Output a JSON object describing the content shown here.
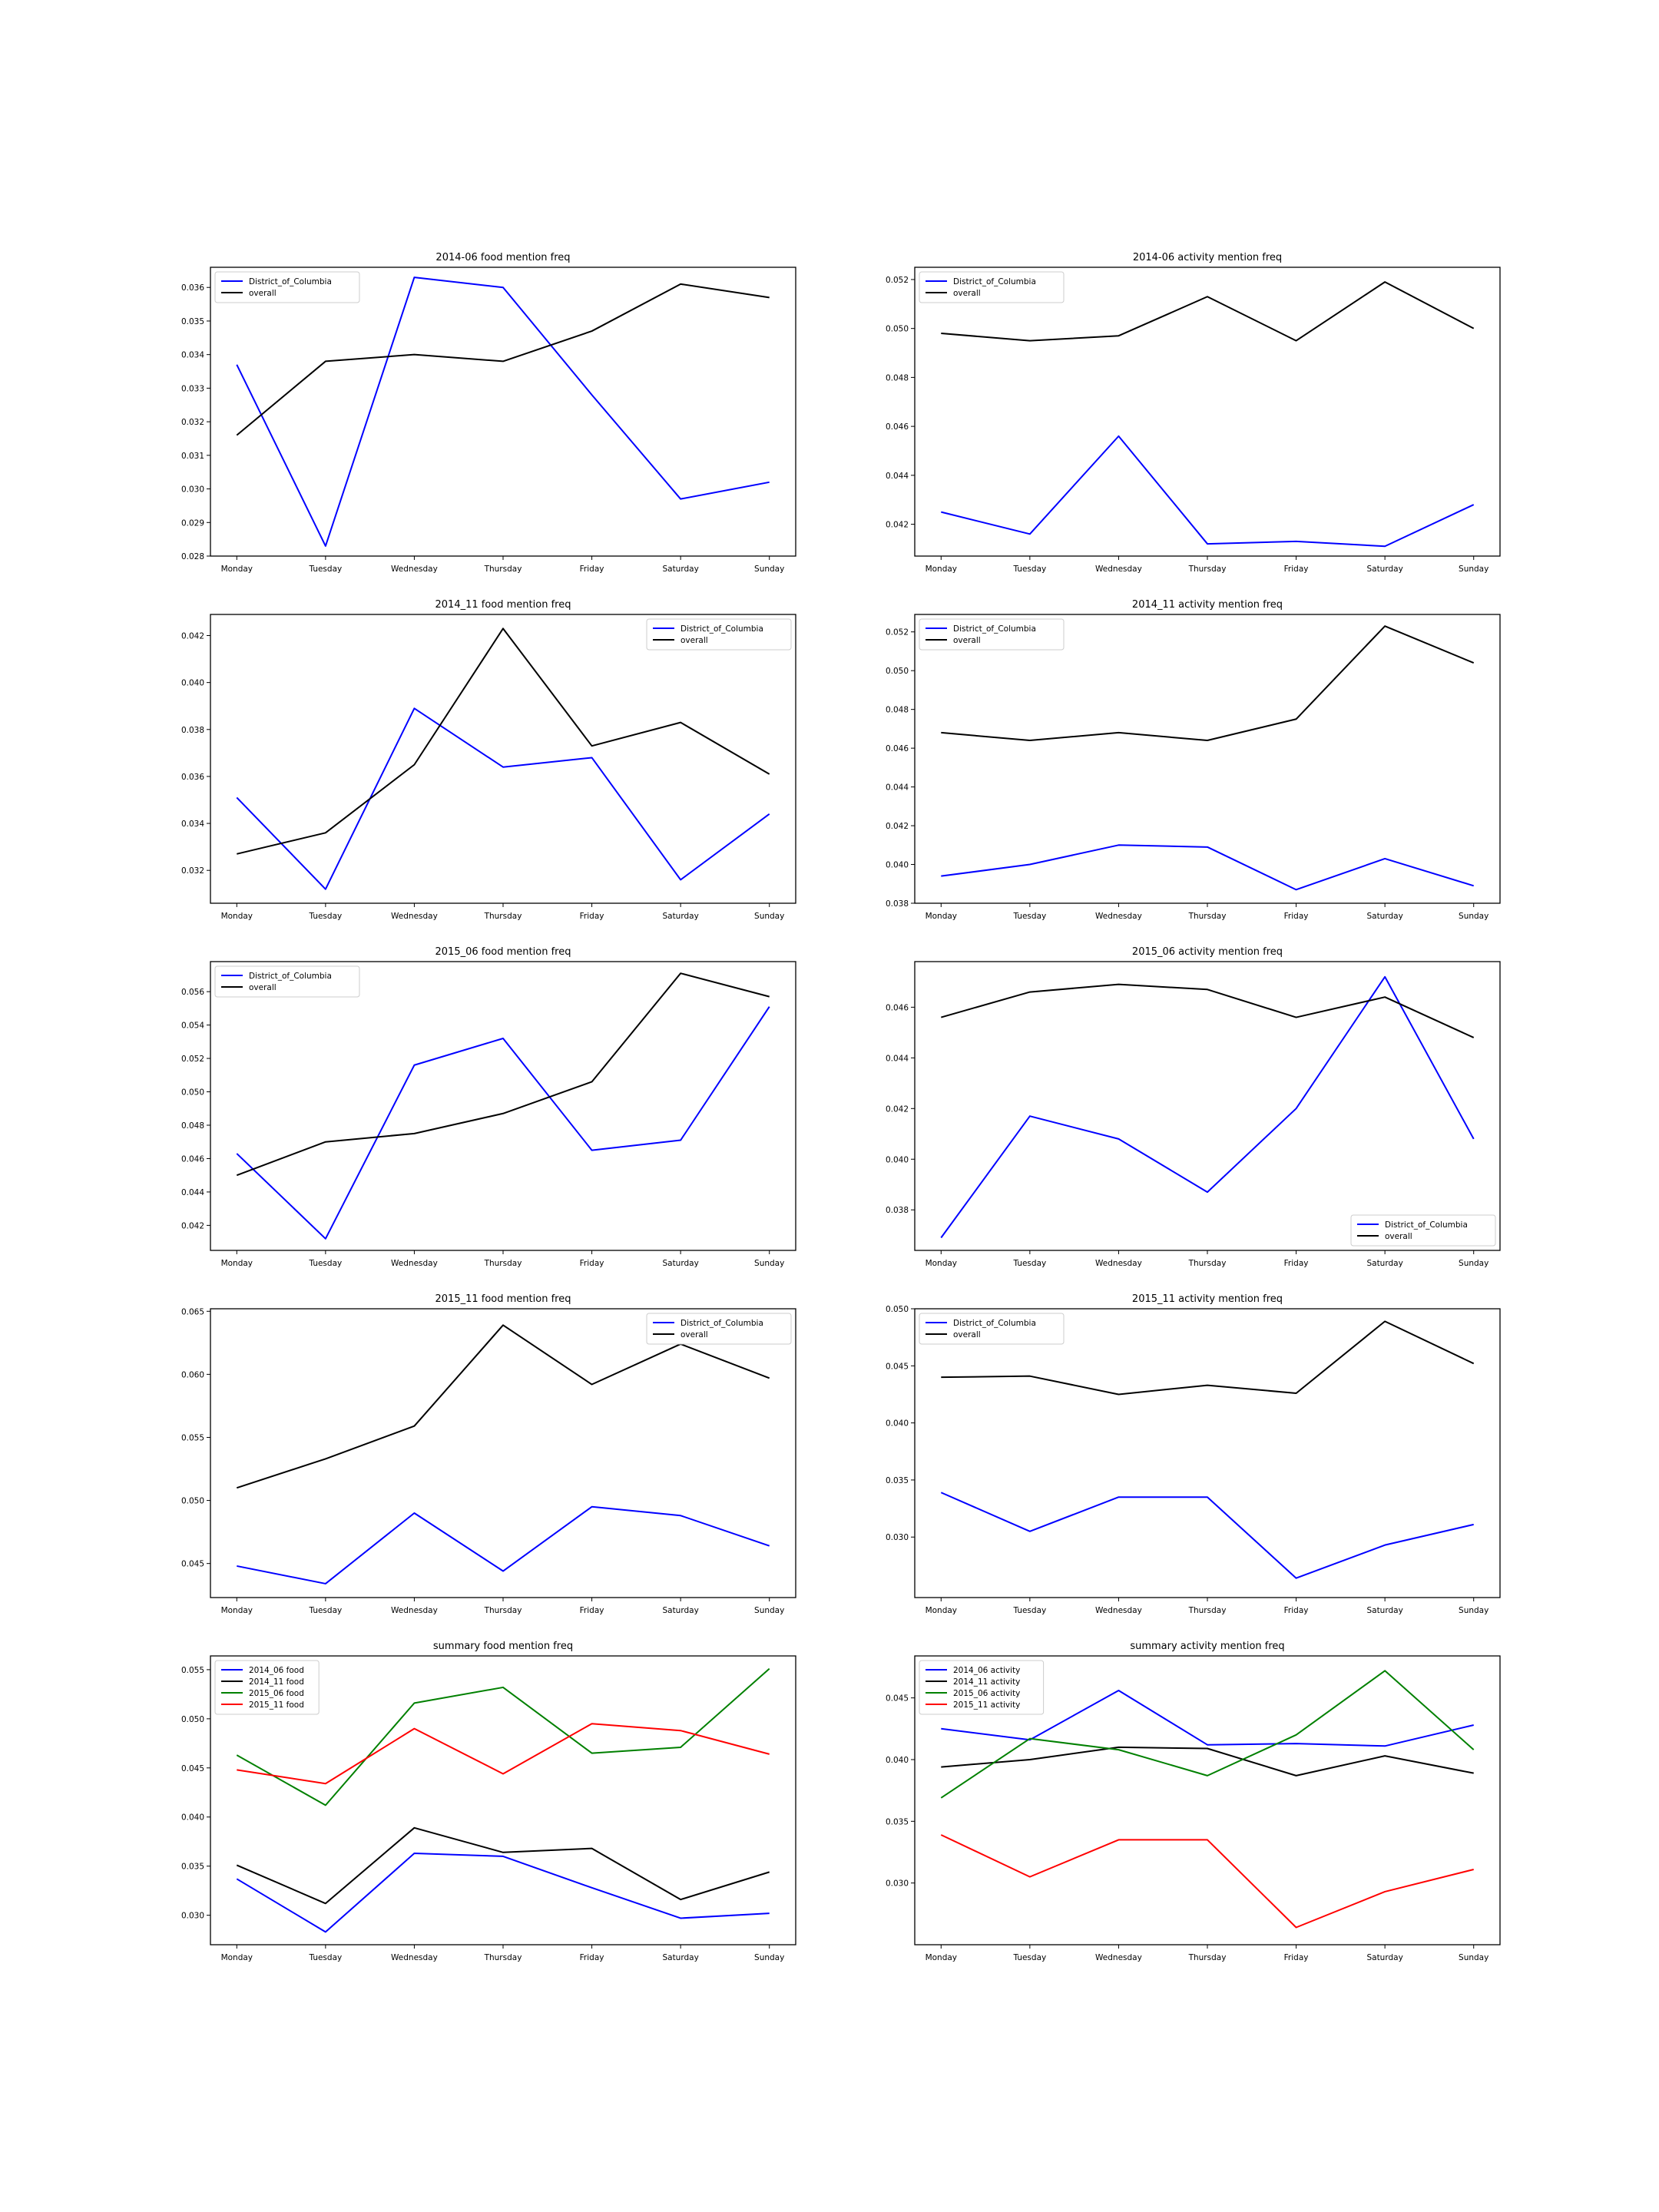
{
  "chart_data": [
    {
      "type": "line",
      "title": "2014-06 food mention freq",
      "categories": [
        "Monday",
        "Tuesday",
        "Wednesday",
        "Thursday",
        "Friday",
        "Saturday",
        "Sunday"
      ],
      "ylim": [
        0.028,
        0.0366
      ],
      "yticks": [
        "0.028",
        "0.029",
        "0.030",
        "0.031",
        "0.032",
        "0.033",
        "0.034",
        "0.035",
        "0.036"
      ],
      "legend": "upper left",
      "series": [
        {
          "name": "District_of_Columbia",
          "color": "#0000ff",
          "values": [
            0.0337,
            0.0283,
            0.0363,
            0.036,
            0.0328,
            0.0297,
            0.0302
          ]
        },
        {
          "name": "overall",
          "color": "#000000",
          "values": [
            0.0316,
            0.0338,
            0.034,
            0.0338,
            0.0347,
            0.0361,
            0.0357
          ]
        }
      ]
    },
    {
      "type": "line",
      "title": "2014-06 activity mention freq",
      "categories": [
        "Monday",
        "Tuesday",
        "Wednesday",
        "Thursday",
        "Friday",
        "Saturday",
        "Sunday"
      ],
      "ylim": [
        0.0407,
        0.0525
      ],
      "yticks": [
        "0.042",
        "0.044",
        "0.046",
        "0.048",
        "0.050",
        "0.052"
      ],
      "legend": "upper left",
      "series": [
        {
          "name": "District_of_Columbia",
          "color": "#0000ff",
          "values": [
            0.0425,
            0.0416,
            0.0456,
            0.0412,
            0.0413,
            0.0411,
            0.0428
          ]
        },
        {
          "name": "overall",
          "color": "#000000",
          "values": [
            0.0498,
            0.0495,
            0.0497,
            0.0513,
            0.0495,
            0.0519,
            0.05
          ]
        }
      ]
    },
    {
      "type": "line",
      "title": "2014_11 food mention freq",
      "categories": [
        "Monday",
        "Tuesday",
        "Wednesday",
        "Thursday",
        "Friday",
        "Saturday",
        "Sunday"
      ],
      "ylim": [
        0.0306,
        0.0429
      ],
      "yticks": [
        "0.032",
        "0.034",
        "0.036",
        "0.038",
        "0.040",
        "0.042"
      ],
      "legend": "upper right",
      "series": [
        {
          "name": "District_of_Columbia",
          "color": "#0000ff",
          "values": [
            0.0351,
            0.0312,
            0.0389,
            0.0364,
            0.0368,
            0.0316,
            0.0344
          ]
        },
        {
          "name": "overall",
          "color": "#000000",
          "values": [
            0.0327,
            0.0336,
            0.0365,
            0.0423,
            0.0373,
            0.0383,
            0.0361
          ]
        }
      ]
    },
    {
      "type": "line",
      "title": "2014_11 activity mention freq",
      "categories": [
        "Monday",
        "Tuesday",
        "Wednesday",
        "Thursday",
        "Friday",
        "Saturday",
        "Sunday"
      ],
      "ylim": [
        0.038,
        0.0529
      ],
      "yticks": [
        "0.038",
        "0.040",
        "0.042",
        "0.044",
        "0.046",
        "0.048",
        "0.050",
        "0.052"
      ],
      "legend": "upper left",
      "series": [
        {
          "name": "District_of_Columbia",
          "color": "#0000ff",
          "values": [
            0.0394,
            0.04,
            0.041,
            0.0409,
            0.0387,
            0.0403,
            0.0389
          ]
        },
        {
          "name": "overall",
          "color": "#000000",
          "values": [
            0.0468,
            0.0464,
            0.0468,
            0.0464,
            0.0475,
            0.0523,
            0.0504
          ]
        }
      ]
    },
    {
      "type": "line",
      "title": "2015_06 food mention freq",
      "categories": [
        "Monday",
        "Tuesday",
        "Wednesday",
        "Thursday",
        "Friday",
        "Saturday",
        "Sunday"
      ],
      "ylim": [
        0.0405,
        0.0578
      ],
      "yticks": [
        "0.042",
        "0.044",
        "0.046",
        "0.048",
        "0.050",
        "0.052",
        "0.054",
        "0.056"
      ],
      "legend": "upper left",
      "series": [
        {
          "name": "District_of_Columbia",
          "color": "#0000ff",
          "values": [
            0.0463,
            0.0412,
            0.0516,
            0.0532,
            0.0465,
            0.0471,
            0.0551
          ]
        },
        {
          "name": "overall",
          "color": "#000000",
          "values": [
            0.045,
            0.047,
            0.0475,
            0.0487,
            0.0506,
            0.0571,
            0.0557
          ]
        }
      ]
    },
    {
      "type": "line",
      "title": "2015_06 activity mention freq",
      "categories": [
        "Monday",
        "Tuesday",
        "Wednesday",
        "Thursday",
        "Friday",
        "Saturday",
        "Sunday"
      ],
      "ylim": [
        0.0364,
        0.0478
      ],
      "yticks": [
        "0.038",
        "0.040",
        "0.042",
        "0.044",
        "0.046"
      ],
      "legend": "lower right",
      "series": [
        {
          "name": "District_of_Columbia",
          "color": "#0000ff",
          "values": [
            0.0369,
            0.0417,
            0.0408,
            0.0387,
            0.042,
            0.0472,
            0.0408
          ]
        },
        {
          "name": "overall",
          "color": "#000000",
          "values": [
            0.0456,
            0.0466,
            0.0469,
            0.0467,
            0.0456,
            0.0464,
            0.0448
          ]
        }
      ]
    },
    {
      "type": "line",
      "title": "2015_11 food mention freq",
      "categories": [
        "Monday",
        "Tuesday",
        "Wednesday",
        "Thursday",
        "Friday",
        "Saturday",
        "Sunday"
      ],
      "ylim": [
        0.0423,
        0.0652
      ],
      "yticks": [
        "0.045",
        "0.050",
        "0.055",
        "0.060",
        "0.065"
      ],
      "legend": "upper right",
      "series": [
        {
          "name": "District_of_Columbia",
          "color": "#0000ff",
          "values": [
            0.0448,
            0.0434,
            0.049,
            0.0444,
            0.0495,
            0.0488,
            0.0464
          ]
        },
        {
          "name": "overall",
          "color": "#000000",
          "values": [
            0.051,
            0.0533,
            0.0559,
            0.0639,
            0.0592,
            0.0624,
            0.0597
          ]
        }
      ]
    },
    {
      "type": "line",
      "title": "2015_11 activity mention freq",
      "categories": [
        "Monday",
        "Tuesday",
        "Wednesday",
        "Thursday",
        "Friday",
        "Saturday",
        "Sunday"
      ],
      "ylim": [
        0.0247,
        0.05
      ],
      "yticks": [
        "0.030",
        "0.035",
        "0.040",
        "0.045",
        "0.050"
      ],
      "legend": "upper left",
      "series": [
        {
          "name": "District_of_Columbia",
          "color": "#0000ff",
          "values": [
            0.0339,
            0.0305,
            0.0335,
            0.0335,
            0.0264,
            0.0293,
            0.0311
          ]
        },
        {
          "name": "overall",
          "color": "#000000",
          "values": [
            0.044,
            0.0441,
            0.0425,
            0.0433,
            0.0426,
            0.0489,
            0.0452
          ]
        }
      ]
    },
    {
      "type": "line",
      "title": "summary food mention freq",
      "categories": [
        "Monday",
        "Tuesday",
        "Wednesday",
        "Thursday",
        "Friday",
        "Saturday",
        "Sunday"
      ],
      "ylim": [
        0.027,
        0.0564
      ],
      "yticks": [
        "0.030",
        "0.035",
        "0.040",
        "0.045",
        "0.050",
        "0.055"
      ],
      "legend": "upper left",
      "series": [
        {
          "name": "2014_06 food",
          "color": "#0000ff",
          "values": [
            0.0337,
            0.0283,
            0.0363,
            0.036,
            0.0328,
            0.0297,
            0.0302
          ]
        },
        {
          "name": "2014_11 food",
          "color": "#000000",
          "values": [
            0.0351,
            0.0312,
            0.0389,
            0.0364,
            0.0368,
            0.0316,
            0.0344
          ]
        },
        {
          "name": "2015_06 food",
          "color": "#008000",
          "values": [
            0.0463,
            0.0412,
            0.0516,
            0.0532,
            0.0465,
            0.0471,
            0.0551
          ]
        },
        {
          "name": "2015_11 food",
          "color": "#ff0000",
          "values": [
            0.0448,
            0.0434,
            0.049,
            0.0444,
            0.0495,
            0.0488,
            0.0464
          ]
        }
      ]
    },
    {
      "type": "line",
      "title": "summary activity mention freq",
      "categories": [
        "Monday",
        "Tuesday",
        "Wednesday",
        "Thursday",
        "Friday",
        "Saturday",
        "Sunday"
      ],
      "ylim": [
        0.025,
        0.0484
      ],
      "yticks": [
        "0.030",
        "0.035",
        "0.040",
        "0.045"
      ],
      "legend": "upper left",
      "series": [
        {
          "name": "2014_06 activity",
          "color": "#0000ff",
          "values": [
            0.0425,
            0.0416,
            0.0456,
            0.0412,
            0.0413,
            0.0411,
            0.0428
          ]
        },
        {
          "name": "2014_11 activity",
          "color": "#000000",
          "values": [
            0.0394,
            0.04,
            0.041,
            0.0409,
            0.0387,
            0.0403,
            0.0389
          ]
        },
        {
          "name": "2015_06 activity",
          "color": "#008000",
          "values": [
            0.0369,
            0.0417,
            0.0408,
            0.0387,
            0.042,
            0.0472,
            0.0408
          ]
        },
        {
          "name": "2015_11 activity",
          "color": "#ff0000",
          "values": [
            0.0339,
            0.0305,
            0.0335,
            0.0335,
            0.0264,
            0.0293,
            0.0311
          ]
        }
      ]
    }
  ]
}
